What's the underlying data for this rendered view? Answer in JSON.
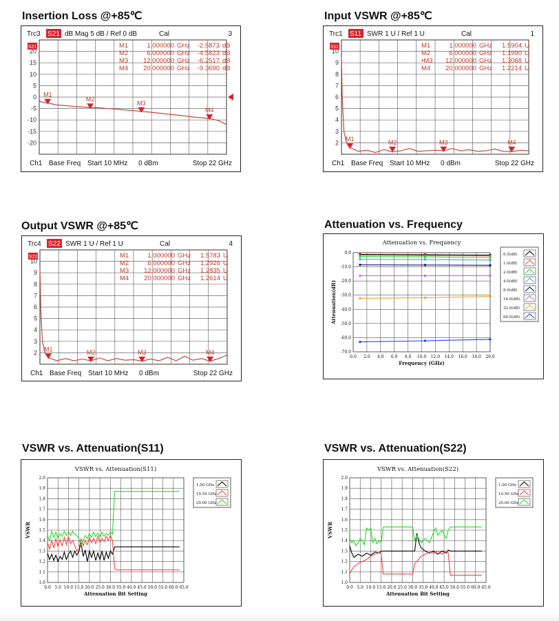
{
  "colors": {
    "trace_red": "#c0392b",
    "header_red": "#d9212b",
    "grid": "#6a6a6a",
    "s_black": "#000000",
    "s_red": "#ff4040",
    "s_green": "#22dd22",
    "s_cyan": "#30b0e0",
    "s_navy": "#101070",
    "s_magenta": "#d060d0",
    "s_orange": "#f0a030",
    "s_blue": "#2040ff"
  },
  "panels": [
    {
      "key": "il",
      "title": "Insertion Loss @+85℃",
      "header": {
        "trc": "Trc3",
        "param": "S21",
        "mode": "dB Mag",
        "scale": "5 dB /",
        "ref": "Ref 0 dB",
        "cal": "Cal",
        "num": "3"
      },
      "marker_table": [
        [
          "M1",
          "1.000000",
          "GHz",
          "-2.5873",
          "dB"
        ],
        [
          "M2",
          "6.000000",
          "GHz",
          "-4.5823",
          "dB"
        ],
        [
          "M3",
          "12.000000",
          "GHz",
          "-6.2517",
          "dB"
        ],
        [
          "M4",
          "20.000000",
          "GHz",
          "-9.3690",
          "dB"
        ]
      ],
      "footer": {
        "ch": "Ch1",
        "base": "Base Freq",
        "start": "Start  10 MHz",
        "power": "0 dBm",
        "stop": "Stop  22 GHz"
      },
      "yticks": [
        "20",
        "15",
        "10",
        "5",
        "0",
        "-5",
        "-10",
        "-15",
        "-20"
      ],
      "chart_data": {
        "type": "line",
        "x_unit": "GHz",
        "xlim": [
          0.01,
          22
        ],
        "ylim": [
          -25,
          25
        ],
        "y_unit": "dB",
        "x": [
          0.01,
          0.3,
          1,
          2,
          3,
          4,
          5,
          6,
          7,
          8,
          9,
          10,
          11,
          12,
          13,
          14,
          15,
          16,
          17,
          18,
          19,
          20,
          21,
          22
        ],
        "values": [
          -1.5,
          -2.2,
          -2.59,
          -3.4,
          -3.7,
          -4.1,
          -4.3,
          -4.58,
          -4.7,
          -5.0,
          -5.3,
          -5.6,
          -5.9,
          -6.25,
          -6.6,
          -7.0,
          -7.4,
          -7.8,
          -8.2,
          -8.7,
          -9.0,
          -9.37,
          -10.2,
          -12.0
        ],
        "markers": [
          {
            "label": "M1",
            "x": 1,
            "y": -2.5873
          },
          {
            "label": "M2",
            "x": 6,
            "y": -4.5823
          },
          {
            "label": "M3",
            "x": 12,
            "y": -6.2517
          },
          {
            "label": "M4",
            "x": 20,
            "y": -9.369
          }
        ]
      }
    },
    {
      "key": "in",
      "title": "Input VSWR @+85℃",
      "header": {
        "trc": "Trc1",
        "param": "S11",
        "mode": "SWR",
        "scale": "1 U /",
        "ref": "Ref 1 U",
        "cal": "Cal",
        "num": "1"
      },
      "marker_table": [
        [
          "M1",
          "1.000000",
          "GHz",
          "1.5904",
          "U"
        ],
        [
          "M2",
          "6.000000",
          "GHz",
          "1.1990",
          "U"
        ],
        [
          "•M3",
          "12.000000",
          "GHz",
          "1.3068",
          "U"
        ],
        [
          "M4",
          "20.000000",
          "GHz",
          "1.2214",
          "U"
        ]
      ],
      "footer": {
        "ch": "Ch1",
        "base": "Base Freq",
        "start": "Start  10 MHz",
        "power": "0 dBm",
        "stop": "Stop  22 GHz"
      },
      "yticks": [
        "10",
        "9",
        "8",
        "7",
        "6",
        "5",
        "4",
        "3",
        "2"
      ],
      "chart_data": {
        "type": "line",
        "x_unit": "GHz",
        "xlim": [
          0.01,
          22
        ],
        "ylim": [
          1,
          11
        ],
        "y_unit": "U",
        "x": [
          0.01,
          0.1,
          0.3,
          0.6,
          1,
          2,
          3,
          4,
          5,
          6,
          7,
          8,
          9,
          10,
          11,
          12,
          13,
          14,
          15,
          16,
          17,
          18,
          19,
          20,
          21,
          22
        ],
        "values": [
          9.5,
          6.0,
          3.0,
          2.0,
          1.59,
          1.25,
          1.35,
          1.15,
          1.4,
          1.2,
          1.3,
          1.5,
          1.25,
          1.3,
          1.35,
          1.31,
          1.5,
          1.3,
          1.4,
          1.25,
          1.3,
          1.45,
          1.25,
          1.22,
          1.35,
          1.3
        ],
        "markers": [
          {
            "label": "M1",
            "x": 1,
            "y": 1.5904
          },
          {
            "label": "M2",
            "x": 6,
            "y": 1.199
          },
          {
            "label": "M3",
            "x": 12,
            "y": 1.3068
          },
          {
            "label": "M4",
            "x": 20,
            "y": 1.2214
          }
        ]
      }
    },
    {
      "key": "out",
      "title": "Output VSWR @+85℃",
      "header": {
        "trc": "Trc4",
        "param": "S22",
        "mode": "SWR",
        "scale": "1 U /",
        "ref": "Ref 1 U",
        "cal": "Cal",
        "num": "4"
      },
      "marker_table": [
        [
          "M1",
          "1.000000",
          "GHz",
          "1.5783",
          "U"
        ],
        [
          "M2",
          "6.000000",
          "GHz",
          "1.2926",
          "U"
        ],
        [
          "M3",
          "12.000000",
          "GHz",
          "1.2835",
          "U"
        ],
        [
          "M4",
          "20.000000",
          "GHz",
          "1.2614",
          "U"
        ]
      ],
      "footer": {
        "ch": "Ch1",
        "base": "Base Freq",
        "start": "Start  10 MHz",
        "power": "0 dBm",
        "stop": "Stop  22 GHz"
      },
      "yticks": [
        "10",
        "9",
        "8",
        "7",
        "6",
        "5",
        "4",
        "3",
        "2"
      ],
      "chart_data": {
        "type": "line",
        "x_unit": "GHz",
        "xlim": [
          0.01,
          22
        ],
        "ylim": [
          1,
          11
        ],
        "y_unit": "U",
        "x": [
          0.01,
          0.1,
          0.3,
          0.6,
          1,
          2,
          3,
          4,
          5,
          6,
          7,
          8,
          9,
          10,
          11,
          12,
          13,
          14,
          15,
          16,
          17,
          18,
          19,
          20,
          21,
          22
        ],
        "values": [
          9.5,
          6.0,
          3.0,
          2.0,
          1.58,
          1.3,
          1.5,
          1.3,
          1.45,
          1.29,
          1.55,
          1.3,
          1.5,
          1.35,
          1.4,
          1.28,
          1.45,
          1.3,
          1.6,
          1.3,
          1.7,
          1.35,
          1.5,
          1.26,
          1.5,
          1.8
        ],
        "markers": [
          {
            "label": "M1",
            "x": 1,
            "y": 1.5783
          },
          {
            "label": "M2",
            "x": 6,
            "y": 1.2926
          },
          {
            "label": "M3",
            "x": 12,
            "y": 1.2835
          },
          {
            "label": "M4",
            "x": 20,
            "y": 1.2614
          }
        ]
      }
    }
  ],
  "att": {
    "title": "Attenuation vs. Frequency",
    "plot_title": "Attenuation vs. Frequency",
    "chart_data": {
      "type": "line",
      "xlabel": "Frequency (GHz)",
      "ylabel": "Attenuation(dB)",
      "xlim": [
        0,
        20
      ],
      "ylim": [
        -70,
        0
      ],
      "xticks": [
        "0.0",
        "2.0",
        "4.0",
        "6.0",
        "8.0",
        "10.0",
        "12.0",
        "14.0",
        "16.0",
        "18.0",
        "20.0"
      ],
      "yticks": [
        "0.0",
        "-10.0",
        "-20.0",
        "-30.0",
        "-40.0",
        "-50.0",
        "-60.0",
        "-70.0"
      ],
      "x": [
        1,
        10.5,
        20
      ],
      "series": [
        {
          "name": "0.5(dB)",
          "color_key": "s_black",
          "values": [
            -1.2,
            -1.4,
            -1.7
          ]
        },
        {
          "name": "1.0(dB)",
          "color_key": "s_red",
          "values": [
            -1.8,
            -2.0,
            -2.3
          ]
        },
        {
          "name": "2.0(dB)",
          "color_key": "s_green",
          "values": [
            -2.8,
            -3.0,
            -3.4
          ]
        },
        {
          "name": "4.0(dB)",
          "color_key": "s_cyan",
          "values": [
            -4.6,
            -4.8,
            -5.2
          ]
        },
        {
          "name": "8.0(dB)",
          "color_key": "s_navy",
          "values": [
            -8.6,
            -8.7,
            -8.9
          ]
        },
        {
          "name": "16.0(dB)",
          "color_key": "s_magenta",
          "values": [
            -16.3,
            -16.3,
            -16.2
          ]
        },
        {
          "name": "32.0(dB)",
          "color_key": "s_orange",
          "values": [
            -32.3,
            -31.8,
            -30.8
          ]
        },
        {
          "name": "64.0(dB)",
          "color_key": "s_blue",
          "values": [
            -63.0,
            -62.2,
            -61.2
          ]
        }
      ]
    }
  },
  "vswr_panels": [
    {
      "key": "s11",
      "title": "VSWR vs. Attenuation(S11)",
      "plot_title": "VSWR vs. Attenuation(S11)",
      "chart_data": {
        "type": "line",
        "xlabel": "Attenuation Bit Setting",
        "ylabel": "VSWR",
        "xlim": [
          0,
          65
        ],
        "ylim": [
          1.0,
          2.0
        ],
        "xticks": [
          "0.0",
          "5.0",
          "10.0",
          "15.0",
          "20.0",
          "25.0",
          "30.0",
          "35.0",
          "40.0",
          "45.0",
          "50.0",
          "55.0",
          "60.0",
          "65.0"
        ],
        "yticks": [
          "2.0",
          "1.9",
          "1.8",
          "1.7",
          "1.6",
          "1.5",
          "1.4",
          "1.3",
          "1.2",
          "1.1",
          "1.0"
        ],
        "series": [
          {
            "name": "1.00 GHz",
            "color_key": "s_black",
            "x": [
              0,
              1,
              2,
              3,
              4,
              5,
              6,
              7,
              8,
              9,
              10,
              11,
              12,
              13,
              14,
              15,
              16,
              17,
              18,
              19,
              20,
              21,
              22,
              23,
              24,
              25,
              26,
              27,
              28,
              29,
              30,
              31,
              32,
              63
            ],
            "values": [
              1.28,
              1.22,
              1.27,
              1.21,
              1.26,
              1.2,
              1.25,
              1.22,
              1.29,
              1.22,
              1.27,
              1.3,
              1.24,
              1.3,
              1.26,
              1.3,
              1.38,
              1.25,
              1.31,
              1.2,
              1.3,
              1.24,
              1.3,
              1.21,
              1.28,
              1.22,
              1.3,
              1.21,
              1.29,
              1.23,
              1.3,
              1.27,
              1.34,
              1.34
            ]
          },
          {
            "name": "10.50 GHz",
            "color_key": "s_red",
            "x": [
              0,
              1,
              2,
              3,
              4,
              5,
              6,
              7,
              8,
              9,
              10,
              11,
              12,
              13,
              14,
              15,
              16,
              17,
              18,
              19,
              20,
              21,
              22,
              23,
              24,
              25,
              26,
              27,
              28,
              29,
              30,
              31,
              32,
              33,
              63
            ],
            "values": [
              1.38,
              1.32,
              1.4,
              1.33,
              1.42,
              1.34,
              1.41,
              1.35,
              1.43,
              1.36,
              1.44,
              1.37,
              1.4,
              1.35,
              1.3,
              1.32,
              1.42,
              1.35,
              1.4,
              1.36,
              1.43,
              1.38,
              1.42,
              1.37,
              1.44,
              1.38,
              1.42,
              1.39,
              1.44,
              1.4,
              1.45,
              1.4,
              1.13,
              1.12,
              1.12
            ]
          },
          {
            "name": "20.00 GHz",
            "color_key": "s_green",
            "x": [
              0,
              1,
              2,
              3,
              4,
              5,
              6,
              7,
              8,
              9,
              10,
              11,
              12,
              13,
              14,
              15,
              16,
              17,
              18,
              19,
              20,
              21,
              22,
              23,
              24,
              25,
              26,
              27,
              28,
              29,
              30,
              31,
              32,
              33,
              63
            ],
            "values": [
              1.45,
              1.4,
              1.49,
              1.43,
              1.48,
              1.42,
              1.47,
              1.44,
              1.49,
              1.45,
              1.48,
              1.45,
              1.49,
              1.46,
              1.45,
              1.42,
              1.35,
              1.4,
              1.45,
              1.42,
              1.47,
              1.43,
              1.48,
              1.44,
              1.47,
              1.43,
              1.48,
              1.44,
              1.47,
              1.45,
              1.48,
              1.46,
              1.87,
              1.87,
              1.87
            ]
          }
        ]
      }
    },
    {
      "key": "s22",
      "title": "VSWR vs. Attenuation(S22)",
      "plot_title": "VSWR vs. Attenuation(S22)",
      "chart_data": {
        "type": "line",
        "xlabel": "Attenuation Bit Setting",
        "ylabel": "VSWR",
        "xlim": [
          0,
          65
        ],
        "ylim": [
          1.0,
          2.0
        ],
        "xticks": [
          "0.0",
          "5.0",
          "10.0",
          "15.0",
          "20.0",
          "25.0",
          "30.0",
          "35.0",
          "40.0",
          "45.0",
          "50.0",
          "55.0",
          "60.0",
          "65.0"
        ],
        "yticks": [
          "2.0",
          "1.9",
          "1.8",
          "1.7",
          "1.6",
          "1.5",
          "1.4",
          "1.3",
          "1.2",
          "1.1",
          "1.0"
        ],
        "series": [
          {
            "name": "1.00 GHz",
            "color_key": "s_black",
            "x": [
              0,
              1,
              2,
              4,
              6,
              8,
              10,
              12,
              14,
              15,
              16,
              20,
              24,
              28,
              30,
              31,
              32,
              33,
              34,
              36,
              38,
              40,
              42,
              44,
              46,
              47,
              48,
              63
            ],
            "values": [
              1.35,
              1.28,
              1.24,
              1.27,
              1.25,
              1.28,
              1.26,
              1.29,
              1.28,
              1.3,
              1.3,
              1.3,
              1.3,
              1.3,
              1.3,
              1.3,
              1.47,
              1.38,
              1.33,
              1.3,
              1.28,
              1.3,
              1.27,
              1.3,
              1.28,
              1.31,
              1.3,
              1.3
            ]
          },
          {
            "name": "10.50 GHz",
            "color_key": "s_red",
            "x": [
              0,
              1,
              2,
              4,
              6,
              8,
              10,
              12,
              14,
              15,
              16,
              30,
              31,
              32,
              34,
              36,
              38,
              40,
              42,
              44,
              46,
              47,
              48,
              63
            ],
            "values": [
              1.08,
              1.12,
              1.15,
              1.18,
              1.2,
              1.22,
              1.25,
              1.27,
              1.28,
              1.28,
              1.08,
              1.08,
              1.18,
              1.2,
              1.25,
              1.27,
              1.29,
              1.28,
              1.3,
              1.27,
              1.3,
              1.28,
              1.07,
              1.07
            ]
          },
          {
            "name": "20.00 GHz",
            "color_key": "s_green",
            "x": [
              0,
              1,
              2,
              3,
              4,
              5,
              6,
              7,
              8,
              9,
              10,
              11,
              12,
              13,
              14,
              15,
              16,
              30,
              31,
              32,
              34,
              36,
              38,
              40,
              41,
              42,
              44,
              46,
              47,
              48,
              63
            ],
            "values": [
              1.42,
              1.38,
              1.4,
              1.35,
              1.38,
              1.42,
              1.4,
              1.36,
              1.52,
              1.5,
              1.52,
              1.38,
              1.42,
              1.37,
              1.4,
              1.38,
              1.53,
              1.53,
              1.4,
              1.45,
              1.38,
              1.42,
              1.38,
              1.48,
              1.52,
              1.45,
              1.5,
              1.42,
              1.5,
              1.53,
              1.53
            ]
          }
        ]
      }
    }
  ]
}
